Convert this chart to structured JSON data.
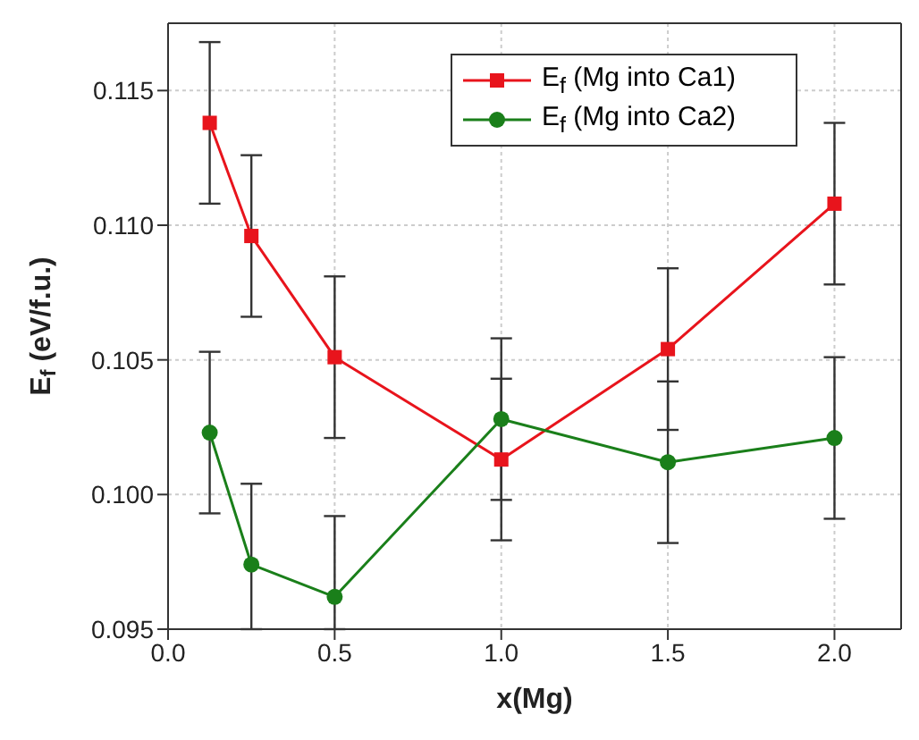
{
  "chart_data": {
    "type": "line",
    "xlabel": "x(Mg)",
    "ylabel": "E$_{f}$ (eV/f.u.)",
    "xlim": [
      0,
      2.2
    ],
    "xticks": [
      {
        "value": 0,
        "label": "0.0"
      },
      0.5,
      {
        "value": 1,
        "label": "1.0"
      },
      1.5,
      {
        "value": 2,
        "label": "2.0"
      }
    ],
    "ylim": [
      0.095,
      0.1175
    ],
    "yticks": [
      {
        "value": 0.095,
        "label": "0.095"
      },
      {
        "value": 0.1,
        "label": "0.100"
      },
      {
        "value": 0.105,
        "label": "0.105"
      },
      {
        "value": 0.11,
        "label": "0.110"
      },
      {
        "value": 0.115,
        "label": "0.115"
      }
    ],
    "grid": true,
    "legend": "top right",
    "x": [
      0.125,
      0.25,
      0.5,
      1,
      1.5,
      2
    ],
    "series": [
      {
        "name": "E$_{f}$ (Mg into Ca1)",
        "color": "#e8141c",
        "marker": "square",
        "values": [
          0.1138,
          0.1096,
          0.1051,
          0.1013,
          0.1054,
          0.1108
        ],
        "errors": [
          0.003,
          0.003,
          0.003,
          0.003,
          0.003,
          0.003
        ]
      },
      {
        "name": "E$_{f}$ (Mg into Ca2)",
        "color": "#1a7f1a",
        "marker": "circle",
        "values": [
          0.1023,
          0.0974,
          0.0962,
          0.1028,
          0.1012,
          0.1021
        ],
        "errors": [
          0.003,
          [
            0.095,
            0.1004
          ],
          [
            0.095,
            0.0992
          ],
          0.003,
          0.003,
          0.003
        ]
      }
    ]
  }
}
